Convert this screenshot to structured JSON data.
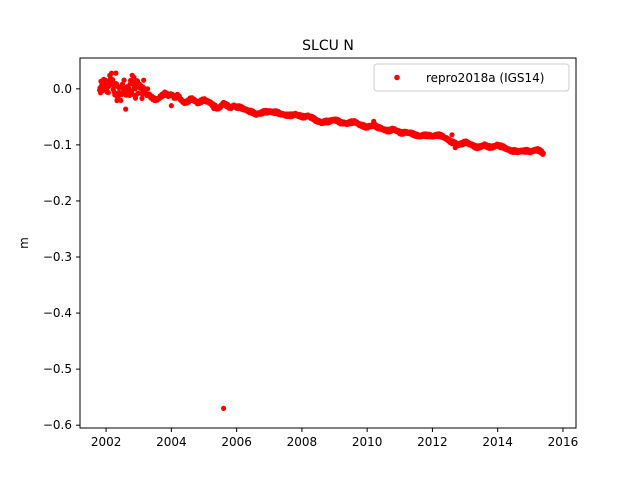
{
  "chart_data": {
    "type": "scatter",
    "title": "SLCU N",
    "xlabel": "",
    "ylabel": "m",
    "xlim": [
      2001.2,
      2016.4
    ],
    "ylim": [
      -0.605,
      0.055
    ],
    "xticks": [
      2002,
      2004,
      2006,
      2008,
      2010,
      2012,
      2014,
      2016
    ],
    "yticks": [
      0.0,
      -0.1,
      -0.2,
      -0.3,
      -0.4,
      -0.5,
      -0.6
    ],
    "ytick_labels": [
      "0.0",
      "−0.1",
      "−0.2",
      "−0.3",
      "−0.4",
      "−0.5",
      "−0.6"
    ],
    "grid": false,
    "legend": {
      "position": "top-right",
      "entries": [
        "repro2018a (IGS14)"
      ]
    },
    "series": [
      {
        "name": "repro2018a (IGS14)",
        "color": "#ff0000",
        "marker": "circle",
        "x": [
          2001.8,
          2001.9,
          2002.0,
          2002.05,
          2002.1,
          2002.15,
          2002.2,
          2002.25,
          2002.3,
          2002.35,
          2002.4,
          2002.45,
          2002.5,
          2002.55,
          2002.6,
          2002.65,
          2002.7,
          2002.75,
          2002.8,
          2002.85,
          2002.9,
          2002.95,
          2003.0,
          2003.05,
          2003.1,
          2003.15,
          2003.2,
          2003.3,
          2003.4,
          2003.5,
          2003.6,
          2003.7,
          2003.8,
          2003.9,
          2004.0,
          2004.1,
          2004.2,
          2004.3,
          2004.4,
          2004.5,
          2004.6,
          2004.7,
          2004.8,
          2004.9,
          2005.0,
          2005.1,
          2005.2,
          2005.3,
          2005.4,
          2005.5,
          2005.6,
          2005.7,
          2005.8,
          2005.9,
          2006.0,
          2006.2,
          2006.4,
          2006.6,
          2006.8,
          2007.0,
          2007.2,
          2007.4,
          2007.6,
          2007.8,
          2008.0,
          2008.2,
          2008.4,
          2008.6,
          2008.8,
          2009.0,
          2009.2,
          2009.4,
          2009.6,
          2009.8,
          2010.0,
          2010.2,
          2010.4,
          2010.6,
          2010.8,
          2011.0,
          2011.2,
          2011.4,
          2011.6,
          2011.8,
          2012.0,
          2012.2,
          2012.4,
          2012.6,
          2012.8,
          2013.0,
          2013.2,
          2013.4,
          2013.6,
          2013.8,
          2014.0,
          2014.2,
          2014.4,
          2014.6,
          2014.8,
          2015.0,
          2015.2,
          2015.4
        ],
        "y": [
          0.0,
          0.01,
          0.005,
          -0.005,
          0.012,
          0.02,
          0.015,
          -0.01,
          0.01,
          -0.02,
          0.005,
          -0.015,
          0.0,
          0.01,
          -0.025,
          0.005,
          -0.01,
          0.015,
          -0.005,
          0.02,
          -0.015,
          0.012,
          0.0,
          0.008,
          -0.01,
          0.005,
          -0.005,
          -0.01,
          -0.015,
          -0.02,
          -0.018,
          -0.012,
          -0.008,
          -0.012,
          -0.01,
          -0.015,
          -0.012,
          -0.02,
          -0.025,
          -0.022,
          -0.018,
          -0.02,
          -0.025,
          -0.022,
          -0.02,
          -0.022,
          -0.025,
          -0.03,
          -0.035,
          -0.032,
          -0.025,
          -0.03,
          -0.034,
          -0.03,
          -0.032,
          -0.035,
          -0.04,
          -0.045,
          -0.042,
          -0.04,
          -0.042,
          -0.045,
          -0.048,
          -0.045,
          -0.05,
          -0.048,
          -0.055,
          -0.06,
          -0.058,
          -0.055,
          -0.06,
          -0.062,
          -0.058,
          -0.065,
          -0.068,
          -0.065,
          -0.07,
          -0.075,
          -0.072,
          -0.078,
          -0.078,
          -0.08,
          -0.085,
          -0.082,
          -0.085,
          -0.082,
          -0.088,
          -0.095,
          -0.1,
          -0.095,
          -0.1,
          -0.105,
          -0.1,
          -0.105,
          -0.1,
          -0.105,
          -0.11,
          -0.112,
          -0.11,
          -0.112,
          -0.108,
          -0.115
        ]
      }
    ],
    "outliers": {
      "x": [
        2004.0,
        2005.3,
        2005.6,
        2010.2,
        2012.6,
        2012.7,
        2002.3,
        2002.8
      ],
      "y": [
        -0.03,
        -0.035,
        -0.57,
        -0.058,
        -0.082,
        -0.105,
        0.028,
        0.024
      ]
    }
  }
}
